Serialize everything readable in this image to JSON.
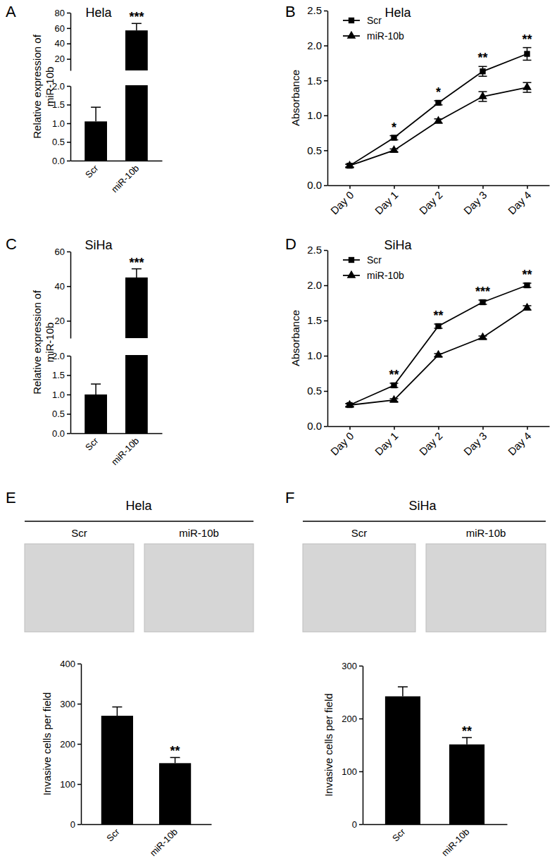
{
  "chart_data": [
    {
      "panel": "A",
      "type": "bar",
      "title": "Hela",
      "y_label": [
        "Relative expression of",
        "miR-10b"
      ],
      "categories": [
        "Scr",
        "miR-10b"
      ],
      "values": [
        1.05,
        57
      ],
      "errors": [
        0.38,
        9
      ],
      "color": "#000000",
      "ylim": [
        0,
        80
      ],
      "y_break": [
        2,
        5
      ],
      "yticks": [
        {
          "value": 0,
          "label": "0.0"
        },
        0.5,
        {
          "value": 1,
          "label": "1.0"
        },
        1.5,
        {
          "value": 2,
          "label": "2.0"
        },
        20,
        40,
        60,
        80
      ],
      "significance": [
        null,
        "***"
      ]
    },
    {
      "panel": "B",
      "type": "line",
      "title": "Hela",
      "y_label": "Absorbance",
      "categories": [
        "Day 0",
        "Day 1",
        "Day 2",
        "Day 3",
        "Day 4"
      ],
      "series": [
        {
          "name": "Scr",
          "color": "#000000",
          "marker": "square",
          "values": [
            0.28,
            0.68,
            1.18,
            1.63,
            1.88
          ],
          "errors": [
            0.02,
            0.03,
            0.03,
            0.07,
            0.09
          ]
        },
        {
          "name": "miR-10b",
          "color": "#000000",
          "marker": "triangle",
          "values": [
            0.28,
            0.5,
            0.92,
            1.27,
            1.4
          ],
          "errors": [
            0.02,
            0.02,
            0.03,
            0.07,
            0.07
          ]
        }
      ],
      "ylim": [
        0,
        2.5
      ],
      "yticks": [
        {
          "value": 0,
          "label": "0.0"
        },
        0.5,
        {
          "value": 1,
          "label": "1.0"
        },
        1.5,
        {
          "value": 2,
          "label": "2.0"
        },
        2.5
      ],
      "legend": "upper left",
      "significance": [
        null,
        "*",
        "*",
        "**",
        "**"
      ]
    },
    {
      "panel": "C",
      "type": "bar",
      "title": "SiHa",
      "y_label": [
        "Relative expression of",
        "miR-10b"
      ],
      "categories": [
        "Scr",
        "miR-10b"
      ],
      "values": [
        1.0,
        45
      ],
      "errors": [
        0.27,
        5
      ],
      "color": "#000000",
      "ylim": [
        0,
        60
      ],
      "y_break": [
        2,
        10
      ],
      "yticks": [
        {
          "value": 0,
          "label": "0.0"
        },
        0.5,
        {
          "value": 1,
          "label": "1.0"
        },
        1.5,
        {
          "value": 2,
          "label": "2.0"
        },
        20,
        40,
        60
      ],
      "significance": [
        null,
        "***"
      ]
    },
    {
      "panel": "D",
      "type": "line",
      "title": "SiHa",
      "y_label": "Absorbance",
      "categories": [
        "Day 0",
        "Day 1",
        "Day 2",
        "Day 3",
        "Day 4"
      ],
      "series": [
        {
          "name": "Scr",
          "color": "#000000",
          "marker": "square",
          "values": [
            0.3,
            0.58,
            1.42,
            1.76,
            2.0
          ],
          "errors": [
            0.02,
            0.03,
            0.03,
            0.03,
            0.03
          ]
        },
        {
          "name": "miR-10b",
          "color": "#000000",
          "marker": "triangle",
          "values": [
            0.3,
            0.37,
            1.01,
            1.26,
            1.68
          ],
          "errors": [
            0.02,
            0.02,
            0.02,
            0.02,
            0.03
          ]
        }
      ],
      "ylim": [
        0,
        2.5
      ],
      "yticks": [
        {
          "value": 0,
          "label": "0.0"
        },
        0.5,
        {
          "value": 1,
          "label": "1.0"
        },
        1.5,
        {
          "value": 2,
          "label": "2.0"
        },
        2.5
      ],
      "legend": "upper left",
      "significance": [
        null,
        "**",
        "**",
        "***",
        "**"
      ]
    },
    {
      "panel": "E",
      "type": "bar",
      "title": "Hela",
      "image_labels": [
        "Scr",
        "miR-10b"
      ],
      "y_label": "Invasive cells per field",
      "categories": [
        "Scr",
        "miR-10b"
      ],
      "values": [
        270,
        152
      ],
      "errors": [
        22,
        14
      ],
      "color": "#000000",
      "ylim": [
        0,
        400
      ],
      "yticks": [
        0,
        100,
        200,
        300,
        400
      ],
      "significance": [
        null,
        "**"
      ]
    },
    {
      "panel": "F",
      "type": "bar",
      "title": "SiHa",
      "image_labels": [
        "Scr",
        "miR-10b"
      ],
      "y_label": "Invasive cells per field",
      "categories": [
        "Scr",
        "miR-10b"
      ],
      "values": [
        242,
        151
      ],
      "errors": [
        18,
        13
      ],
      "color": "#000000",
      "ylim": [
        0,
        300
      ],
      "yticks": [
        0,
        100,
        200,
        300
      ],
      "significance": [
        null,
        "**"
      ]
    }
  ]
}
